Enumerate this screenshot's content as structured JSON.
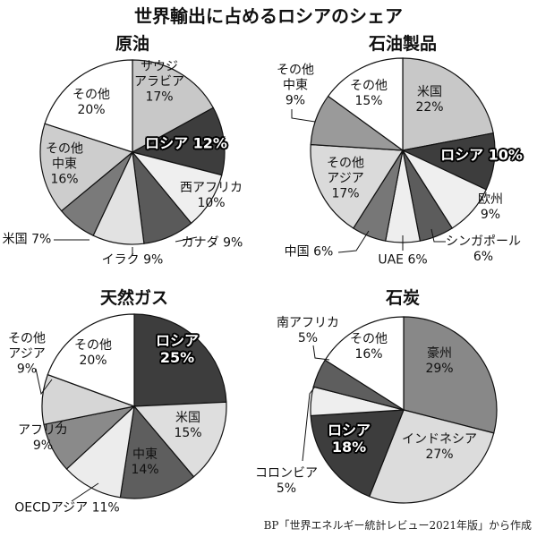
{
  "title": "世界輸出に占めるロシアのシェア",
  "source": "BP「世界エネルギー統計レビュー2021年版」から作成",
  "chart_data": [
    {
      "type": "pie",
      "title": "原油",
      "unit": "%",
      "categories": [
        "サウジ\nアラビア",
        "ロシア",
        "西アフリカ",
        "カナダ",
        "イラク",
        "米国",
        "その他\n中東",
        "その他"
      ],
      "values": [
        17,
        12,
        10,
        9,
        9,
        7,
        16,
        20
      ],
      "colors": [
        "#c8c8c8",
        "#3d3d3d",
        "#efefef",
        "#5a5a5a",
        "#e2e2e2",
        "#7a7a7a",
        "#cdcdcd",
        "#ffffff"
      ],
      "highlight": "ロシア"
    },
    {
      "type": "pie",
      "title": "石油製品",
      "unit": "%",
      "categories": [
        "米国",
        "ロシア",
        "欧州",
        "シンガポール",
        "UAE",
        "中国",
        "その他\nアジア",
        "その他\n中東",
        "その他"
      ],
      "values": [
        22,
        10,
        9,
        6,
        6,
        6,
        17,
        9,
        15
      ],
      "colors": [
        "#c8c8c8",
        "#3d3d3d",
        "#efefef",
        "#5c5c5c",
        "#eeeeee",
        "#777777",
        "#dadada",
        "#9a9a9a",
        "#ffffff"
      ],
      "highlight": "ロシア"
    },
    {
      "type": "pie",
      "title": "天然ガス",
      "unit": "%",
      "categories": [
        "ロシア",
        "米国",
        "中東",
        "OECDアジア",
        "アフリカ",
        "その他\nアジア",
        "その他"
      ],
      "values": [
        25,
        15,
        14,
        11,
        9,
        9,
        20
      ],
      "colors": [
        "#3d3d3d",
        "#dedede",
        "#5e5e5e",
        "#ececec",
        "#8a8a8a",
        "#d6d6d6",
        "#ffffff"
      ],
      "highlight": "ロシア"
    },
    {
      "type": "pie",
      "title": "石炭",
      "unit": "%",
      "categories": [
        "豪州",
        "インドネシア",
        "ロシア",
        "コロンビア",
        "南アフリカ",
        "その他"
      ],
      "values": [
        29,
        27,
        18,
        5,
        5,
        16
      ],
      "colors": [
        "#888888",
        "#dcdcdc",
        "#3d3d3d",
        "#eeeeee",
        "#5e5e5e",
        "#ffffff"
      ],
      "highlight": "ロシア"
    }
  ]
}
